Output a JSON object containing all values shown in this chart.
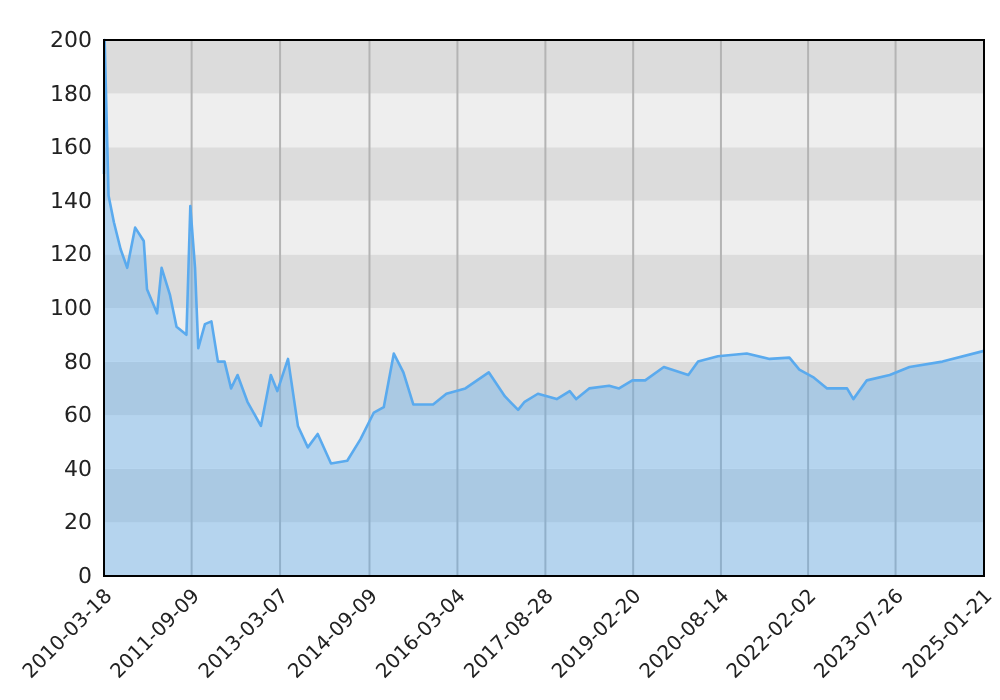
{
  "chart_data": {
    "type": "area",
    "grid": true,
    "xlim": [
      "2010-03-18",
      "2025-01-21"
    ],
    "xticks": [
      "2010-03-18",
      "2011-09-09",
      "2013-03-07",
      "2014-09-09",
      "2016-03-04",
      "2017-08-28",
      "2019-02-20",
      "2020-08-14",
      "2022-02-02",
      "2023-07-26",
      "2025-01-21"
    ],
    "ylim": [
      0,
      200
    ],
    "yticks": [
      0,
      20,
      40,
      60,
      80,
      100,
      120,
      140,
      160,
      180,
      200
    ],
    "series": [
      {
        "color": "#5aaaee",
        "x": [
          "2010-03-18",
          "2010-03-22",
          "2010-04-15",
          "2010-05-18",
          "2010-06-28",
          "2010-08-08",
          "2010-09-26",
          "2010-11-18",
          "2010-12-08",
          "2011-02-08",
          "2011-03-08",
          "2011-04-28",
          "2011-06-08",
          "2011-08-08",
          "2011-09-01",
          "2011-09-30",
          "2011-10-20",
          "2011-11-30",
          "2012-01-09",
          "2012-02-18",
          "2012-03-30",
          "2012-05-09",
          "2012-06-18",
          "2012-08-18",
          "2012-11-09",
          "2013-01-09",
          "2013-02-18",
          "2013-04-25",
          "2013-06-25",
          "2013-08-25",
          "2013-10-25",
          "2014-01-15",
          "2014-04-25",
          "2014-07-15",
          "2014-10-06",
          "2014-12-06",
          "2015-02-06",
          "2015-04-06",
          "2015-06-06",
          "2015-10-06",
          "2015-12-27",
          "2016-04-22",
          "2016-09-13",
          "2016-12-22",
          "2017-03-13",
          "2017-04-22",
          "2017-07-13",
          "2017-11-06",
          "2018-01-25",
          "2018-03-06",
          "2018-05-25",
          "2018-09-25",
          "2018-11-25",
          "2019-02-15",
          "2019-05-05",
          "2019-08-28",
          "2020-01-26",
          "2020-03-26",
          "2020-07-26",
          "2021-01-20",
          "2021-06-10",
          "2021-10-10",
          "2021-12-10",
          "2022-03-10",
          "2022-05-30",
          "2022-09-30",
          "2022-11-08",
          "2023-01-30",
          "2023-06-20",
          "2023-10-20",
          "2024-05-10",
          "2025-01-21"
        ],
        "values": [
          150,
          200,
          142,
          132,
          122,
          115,
          130,
          125,
          107,
          98,
          115,
          105,
          93,
          90,
          138,
          115,
          85,
          94,
          95,
          80,
          80,
          70,
          75,
          65,
          56,
          75,
          69,
          81,
          56,
          48,
          53,
          42,
          43,
          51,
          61,
          63,
          83,
          76,
          64,
          64,
          68,
          70,
          76,
          67,
          62,
          65,
          68,
          66,
          69,
          66,
          70,
          71,
          70,
          73,
          73,
          78,
          75,
          80,
          82,
          83,
          81,
          81.5,
          77,
          74,
          70,
          70,
          66,
          73,
          75,
          78,
          80,
          84
        ]
      }
    ]
  }
}
